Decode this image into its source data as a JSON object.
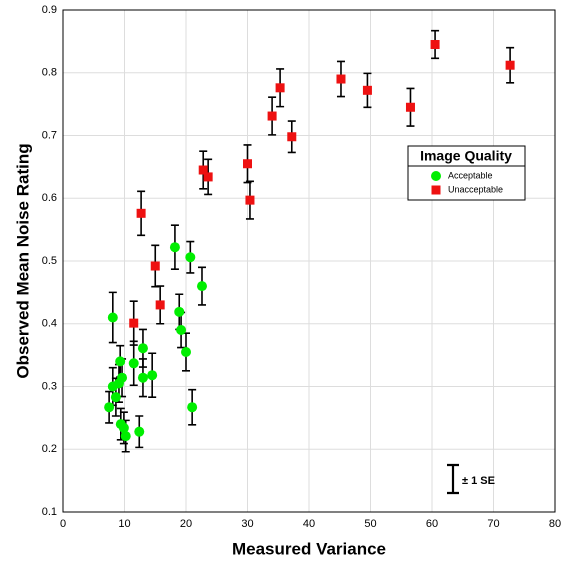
{
  "chart_data": {
    "type": "scatter",
    "xlabel": "Measured Variance",
    "ylabel": "Observed Mean Noise Rating",
    "xlim": [
      0,
      80
    ],
    "xticks": [
      0,
      10,
      20,
      30,
      40,
      50,
      60,
      70,
      80
    ],
    "ylim": [
      0.1,
      0.9
    ],
    "yticks": [
      0.1,
      0.2,
      0.3,
      0.4,
      0.5,
      0.6,
      0.7,
      0.8,
      0.9
    ],
    "grid": true,
    "legend_title": "Image Quality",
    "legend_position": "upper right",
    "error_annotation": "± 1 SE",
    "series": [
      {
        "name": "Acceptable",
        "color": "#00ee00",
        "marker": "circle",
        "x": [
          8.1,
          7.5,
          8.1,
          8.6,
          9.1,
          9.3,
          9.4,
          9.6,
          9.9,
          10.2,
          11.5,
          12.4,
          13.0,
          13.0,
          14.5,
          18.2,
          18.9,
          19.2,
          20.0,
          20.7,
          21.0,
          22.6
        ],
        "values": [
          0.41,
          0.267,
          0.3,
          0.283,
          0.305,
          0.34,
          0.24,
          0.314,
          0.234,
          0.221,
          0.337,
          0.228,
          0.361,
          0.314,
          0.318,
          0.522,
          0.419,
          0.39,
          0.355,
          0.506,
          0.267,
          0.46
        ],
        "errors": [
          0.04,
          0.025,
          0.03,
          0.03,
          0.03,
          0.025,
          0.025,
          0.03,
          0.025,
          0.025,
          0.035,
          0.025,
          0.03,
          0.03,
          0.035,
          0.035,
          0.028,
          0.028,
          0.03,
          0.025,
          0.028,
          0.03
        ]
      },
      {
        "name": "Unacceptable",
        "color": "#ee1111",
        "marker": "square",
        "x": [
          11.5,
          12.7,
          15.0,
          15.8,
          22.8,
          23.6,
          30.0,
          30.4,
          34.0,
          35.3,
          37.2,
          45.2,
          49.5,
          56.5,
          60.5,
          72.7
        ],
        "values": [
          0.401,
          0.576,
          0.492,
          0.43,
          0.645,
          0.634,
          0.655,
          0.597,
          0.731,
          0.776,
          0.698,
          0.79,
          0.772,
          0.745,
          0.845,
          0.812
        ],
        "errors": [
          0.035,
          0.035,
          0.033,
          0.03,
          0.03,
          0.028,
          0.03,
          0.03,
          0.03,
          0.03,
          0.025,
          0.028,
          0.027,
          0.03,
          0.022,
          0.028
        ]
      }
    ]
  }
}
